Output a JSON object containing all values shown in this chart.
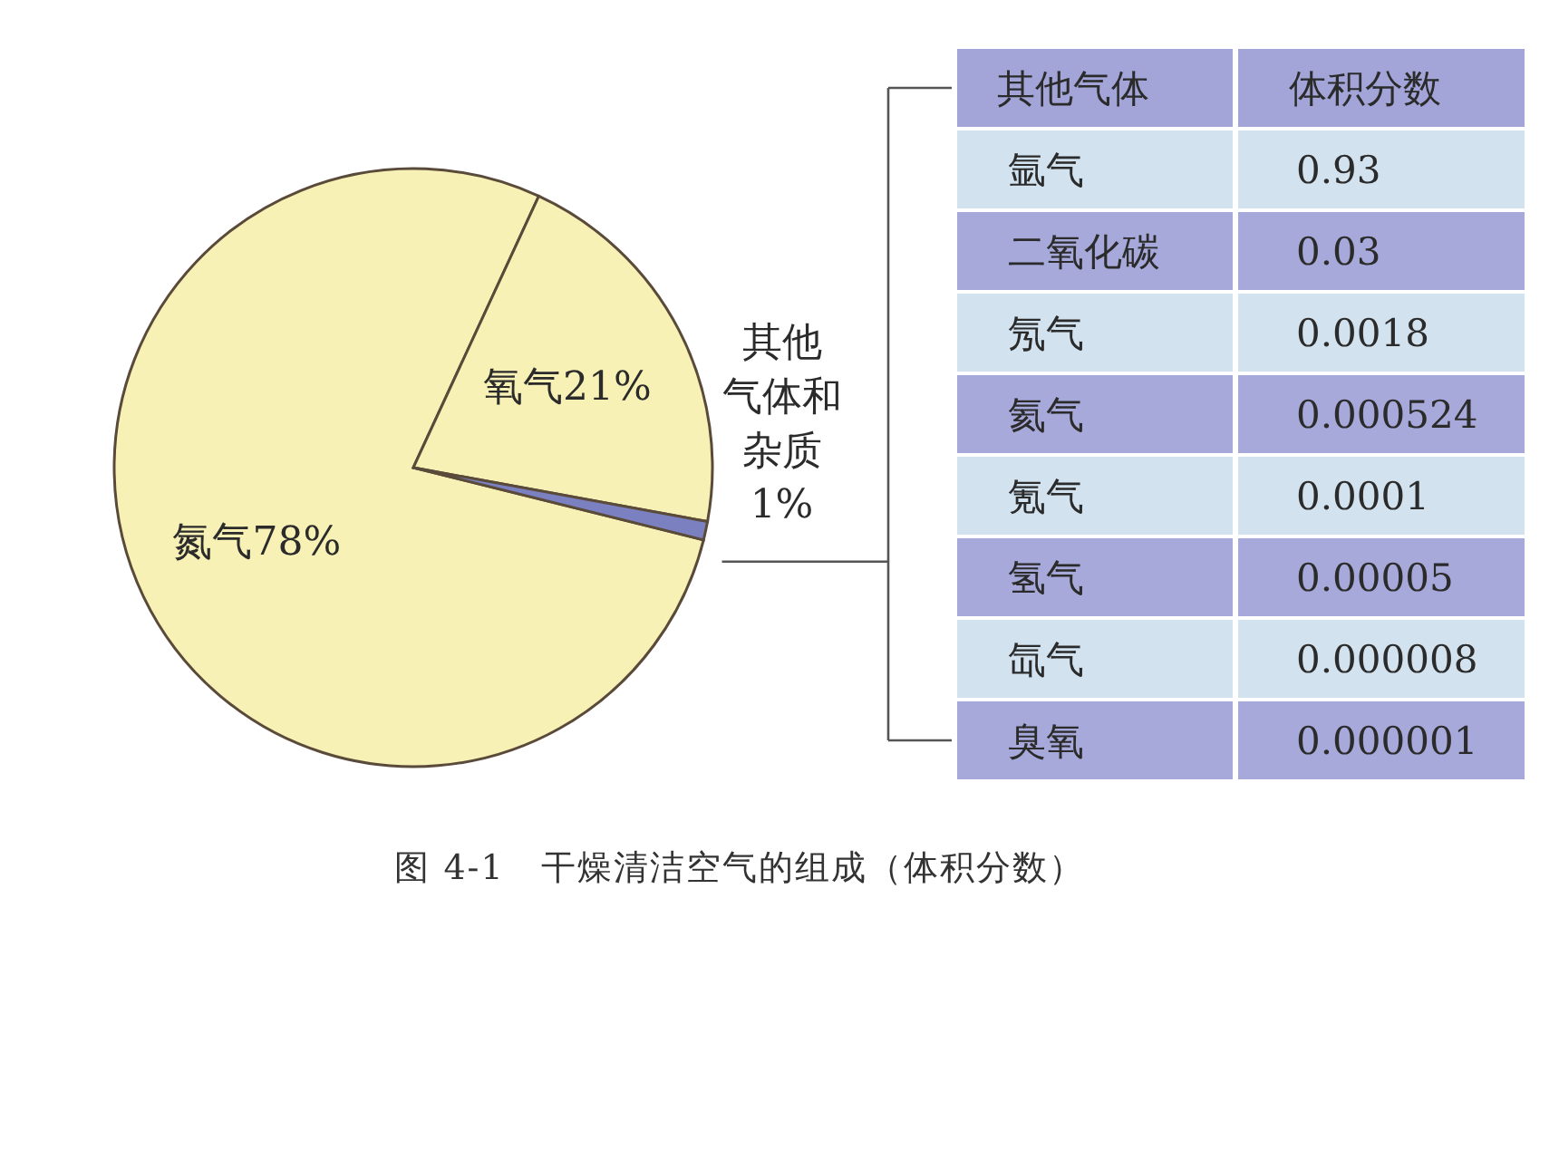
{
  "chart_data": [
    {
      "type": "pie",
      "categories": [
        "氮气",
        "氧气",
        "其他气体和杂质"
      ],
      "values": [
        78,
        21,
        1
      ],
      "value_labels": [
        "78%",
        "21%",
        "1%"
      ],
      "colors": [
        "#f8f1b6",
        "#f8f1b6",
        "#7b80c0"
      ],
      "annotations": [
        "图 4-1　干燥清洁空气的组成（体积分数）"
      ]
    },
    {
      "type": "other",
      "xlabel": "其他气体",
      "ylabel": "体积分数",
      "categories": [
        "氩气",
        "二氧化碳",
        "氖气",
        "氦气",
        "氪气",
        "氢气",
        "氙气",
        "臭氧"
      ],
      "values": [
        0.93,
        0.03,
        0.0018,
        0.000524,
        0.0001,
        5e-05,
        8e-06,
        1e-06
      ],
      "value_labels": [
        "0.93",
        "0.03",
        "0.0018",
        "0.000524",
        "0.0001",
        "0.00005",
        "0.000008",
        "0.000001"
      ],
      "colors": [
        "#d2e2ee",
        "#a7a9da",
        "#d2e2ee",
        "#a7a9da",
        "#d2e2ee",
        "#a7a9da",
        "#d2e2ee",
        "#a7a9da"
      ]
    }
  ]
}
